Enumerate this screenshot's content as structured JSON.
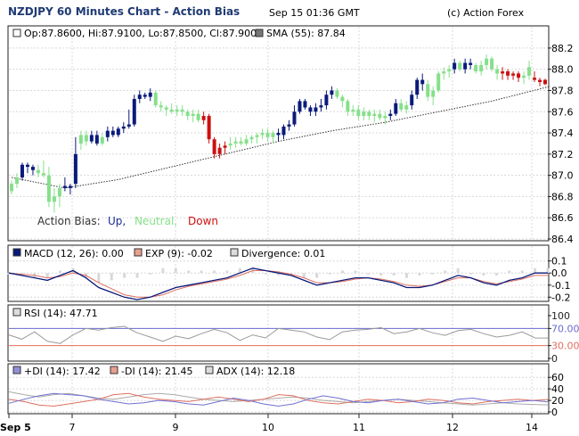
{
  "header": {
    "title": "NZDJPY 60 Minutes Chart - Action Bias",
    "timestamp": "Sep 15 01:36 GMT",
    "copyright": "(c) Action Forex"
  },
  "colors": {
    "up": "#0a1a7a",
    "neutral": "#86e08a",
    "down": "#cc1010",
    "frame": "#222222",
    "grid": "#d8d8d8",
    "sma": "#333333",
    "macd": "#0a1a7a",
    "exp": "#e07060",
    "divergence": "#d8d8d8",
    "rsi": "#999999",
    "rsi_upper": "#6a6ad0",
    "rsi_lower": "#e07060",
    "plus_di": "#7070d0",
    "minus_di": "#e07060",
    "adx": "#aaaaaa"
  },
  "x_axis": {
    "labels": [
      {
        "text": "Sep 5",
        "bold": true
      },
      {
        "text": "7"
      },
      {
        "text": "9"
      },
      {
        "text": "10"
      },
      {
        "text": "11"
      },
      {
        "text": "12"
      },
      {
        "text": "14"
      }
    ]
  },
  "price_panel": {
    "ohlc_label": "Op:87.8600, Hi:87.9100, Lo:87.8500, Cl:87.9000",
    "sma_label": "SMA (55): 87.84",
    "legend_prefix": "Action Bias:",
    "legend_up": "Up,",
    "legend_neutral": "Neutral,",
    "legend_down": "Down",
    "y_ticks": [
      "88.2",
      "88.0",
      "87.8",
      "87.6",
      "87.4",
      "87.2",
      "87.0",
      "86.8",
      "86.6",
      "86.4"
    ]
  },
  "macd_panel": {
    "macd_label": "MACD (12, 26): 0.00",
    "exp_label": "EXP (9): -0.02",
    "div_label": "Divergence: 0.01",
    "y_ticks": [
      "0.1",
      "0.0",
      "-0.1",
      "-0.2"
    ]
  },
  "rsi_panel": {
    "rsi_label": "RSI (14): 47.71",
    "y_ticks": [
      "100",
      "70.00",
      "30.00",
      "0"
    ]
  },
  "adx_panel": {
    "plus_di_label": "+DI (14): 17.42",
    "minus_di_label": "-DI (14): 21.45",
    "adx_label": "ADX (14): 12.18",
    "y_ticks": [
      "60",
      "40",
      "20",
      "0"
    ]
  },
  "chart_data": {
    "type": "bar",
    "title": "NZDJPY 60 Minutes Chart - Action Bias",
    "x_tick_labels": [
      "Sep 5",
      "7",
      "9",
      "10",
      "11",
      "12",
      "14"
    ],
    "price": {
      "ylim": [
        86.4,
        88.3
      ],
      "bars": [
        [
          86.85,
          86.95,
          86.82,
          86.92,
          "n"
        ],
        [
          86.92,
          87.02,
          86.88,
          86.98,
          "n"
        ],
        [
          86.98,
          87.12,
          86.95,
          87.1,
          "u"
        ],
        [
          87.1,
          87.12,
          87.02,
          87.08,
          "u"
        ],
        [
          87.08,
          87.1,
          87.0,
          87.05,
          "u"
        ],
        [
          87.05,
          87.1,
          86.98,
          87.02,
          "n"
        ],
        [
          87.02,
          87.14,
          86.98,
          87.0,
          "n"
        ],
        [
          87.0,
          87.08,
          86.7,
          86.75,
          "n"
        ],
        [
          86.75,
          86.88,
          86.65,
          86.8,
          "n"
        ],
        [
          86.8,
          86.92,
          86.7,
          86.88,
          "n"
        ],
        [
          86.88,
          86.98,
          86.85,
          86.9,
          "u"
        ],
        [
          86.9,
          86.92,
          86.82,
          86.88,
          "u"
        ],
        [
          86.92,
          87.36,
          86.88,
          87.2,
          "u"
        ],
        [
          87.3,
          87.42,
          87.24,
          87.38,
          "n"
        ],
        [
          87.38,
          87.42,
          87.28,
          87.32,
          "n"
        ],
        [
          87.32,
          87.42,
          87.3,
          87.38,
          "u"
        ],
        [
          87.38,
          87.42,
          87.28,
          87.3,
          "u"
        ],
        [
          87.3,
          87.4,
          87.28,
          87.36,
          "n"
        ],
        [
          87.36,
          87.46,
          87.32,
          87.42,
          "u"
        ],
        [
          87.42,
          87.46,
          87.36,
          87.38,
          "u"
        ],
        [
          87.38,
          87.46,
          87.36,
          87.44,
          "u"
        ],
        [
          87.44,
          87.5,
          87.4,
          87.46,
          "u"
        ],
        [
          87.46,
          87.62,
          87.44,
          87.48,
          "u"
        ],
        [
          87.48,
          87.76,
          87.46,
          87.72,
          "u"
        ],
        [
          87.72,
          87.8,
          87.68,
          87.76,
          "u"
        ],
        [
          87.76,
          87.78,
          87.72,
          87.74,
          "u"
        ],
        [
          87.74,
          87.82,
          87.7,
          87.78,
          "u"
        ],
        [
          87.78,
          87.8,
          87.64,
          87.66,
          "n"
        ],
        [
          87.66,
          87.7,
          87.6,
          87.64,
          "n"
        ],
        [
          87.64,
          87.66,
          87.56,
          87.62,
          "n"
        ],
        [
          87.62,
          87.68,
          87.58,
          87.6,
          "n"
        ],
        [
          87.6,
          87.66,
          87.56,
          87.62,
          "n"
        ],
        [
          87.62,
          87.66,
          87.56,
          87.6,
          "n"
        ],
        [
          87.6,
          87.62,
          87.52,
          87.56,
          "n"
        ],
        [
          87.56,
          87.62,
          87.5,
          87.58,
          "n"
        ],
        [
          87.58,
          87.62,
          87.5,
          87.52,
          "n"
        ],
        [
          87.52,
          87.6,
          87.48,
          87.56,
          "d"
        ],
        [
          87.56,
          87.58,
          87.3,
          87.34,
          "d"
        ],
        [
          87.34,
          87.36,
          87.16,
          87.2,
          "d"
        ],
        [
          87.2,
          87.3,
          87.16,
          87.26,
          "d"
        ],
        [
          87.26,
          87.32,
          87.2,
          87.28,
          "d"
        ],
        [
          87.28,
          87.36,
          87.24,
          87.3,
          "n"
        ],
        [
          87.3,
          87.36,
          87.26,
          87.32,
          "n"
        ],
        [
          87.32,
          87.36,
          87.28,
          87.3,
          "n"
        ],
        [
          87.3,
          87.38,
          87.28,
          87.34,
          "n"
        ],
        [
          87.34,
          87.38,
          87.3,
          87.36,
          "n"
        ],
        [
          87.36,
          87.4,
          87.3,
          87.38,
          "n"
        ],
        [
          87.38,
          87.44,
          87.34,
          87.4,
          "n"
        ],
        [
          87.4,
          87.44,
          87.32,
          87.36,
          "n"
        ],
        [
          87.36,
          87.42,
          87.3,
          87.4,
          "n"
        ],
        [
          87.4,
          87.44,
          87.32,
          87.38,
          "u"
        ],
        [
          87.38,
          87.48,
          87.34,
          87.46,
          "u"
        ],
        [
          87.46,
          87.52,
          87.42,
          87.48,
          "u"
        ],
        [
          87.48,
          87.66,
          87.46,
          87.6,
          "u"
        ],
        [
          87.6,
          87.72,
          87.58,
          87.7,
          "u"
        ],
        [
          87.7,
          87.72,
          87.62,
          87.64,
          "u"
        ],
        [
          87.64,
          87.66,
          87.56,
          87.6,
          "u"
        ],
        [
          87.6,
          87.68,
          87.56,
          87.64,
          "u"
        ],
        [
          87.64,
          87.72,
          87.6,
          87.66,
          "u"
        ],
        [
          87.66,
          87.8,
          87.62,
          87.76,
          "u"
        ],
        [
          87.76,
          87.84,
          87.72,
          87.8,
          "u"
        ],
        [
          87.8,
          87.82,
          87.72,
          87.74,
          "n"
        ],
        [
          87.74,
          87.76,
          87.64,
          87.7,
          "n"
        ],
        [
          87.7,
          87.72,
          87.56,
          87.6,
          "n"
        ],
        [
          87.6,
          87.66,
          87.56,
          87.62,
          "n"
        ],
        [
          87.62,
          87.66,
          87.52,
          87.56,
          "n"
        ],
        [
          87.56,
          87.64,
          87.52,
          87.6,
          "n"
        ],
        [
          87.6,
          87.62,
          87.52,
          87.56,
          "n"
        ],
        [
          87.56,
          87.62,
          87.5,
          87.58,
          "n"
        ],
        [
          87.58,
          87.62,
          87.52,
          87.54,
          "n"
        ],
        [
          87.54,
          87.6,
          87.48,
          87.56,
          "n"
        ],
        [
          87.56,
          87.62,
          87.52,
          87.58,
          "u"
        ],
        [
          87.58,
          87.72,
          87.56,
          87.68,
          "u"
        ],
        [
          87.68,
          87.72,
          87.6,
          87.62,
          "n"
        ],
        [
          87.62,
          87.7,
          87.58,
          87.66,
          "n"
        ],
        [
          87.66,
          87.8,
          87.62,
          87.76,
          "u"
        ],
        [
          87.76,
          87.92,
          87.72,
          87.9,
          "u"
        ],
        [
          87.9,
          87.96,
          87.8,
          87.86,
          "u"
        ],
        [
          87.86,
          87.9,
          87.7,
          87.74,
          "n"
        ],
        [
          87.74,
          87.84,
          87.66,
          87.8,
          "n"
        ],
        [
          87.8,
          87.98,
          87.78,
          87.96,
          "n"
        ],
        [
          87.96,
          88.02,
          87.9,
          87.98,
          "n"
        ],
        [
          87.98,
          88.04,
          87.92,
          88.0,
          "n"
        ],
        [
          88.0,
          88.1,
          87.96,
          88.06,
          "u"
        ],
        [
          88.06,
          88.08,
          87.98,
          88.0,
          "n"
        ],
        [
          88.0,
          88.1,
          87.96,
          88.06,
          "u"
        ],
        [
          88.06,
          88.1,
          88.0,
          88.04,
          "u"
        ],
        [
          88.04,
          88.06,
          87.96,
          87.98,
          "n"
        ],
        [
          87.98,
          88.08,
          87.94,
          88.04,
          "n"
        ],
        [
          88.04,
          88.14,
          88.0,
          88.1,
          "n"
        ],
        [
          88.1,
          88.12,
          87.98,
          88.0,
          "n"
        ],
        [
          88.0,
          88.04,
          87.9,
          87.96,
          "n"
        ],
        [
          87.96,
          88.02,
          87.9,
          87.98,
          "d"
        ],
        [
          87.98,
          88.0,
          87.9,
          87.94,
          "d"
        ],
        [
          87.94,
          87.98,
          87.9,
          87.96,
          "d"
        ],
        [
          87.96,
          87.98,
          87.88,
          87.92,
          "d"
        ],
        [
          87.92,
          87.98,
          87.86,
          87.94,
          "n"
        ],
        [
          87.94,
          88.08,
          87.9,
          88.02,
          "n"
        ],
        [
          87.92,
          87.98,
          87.88,
          87.9,
          "d"
        ],
        [
          87.9,
          87.92,
          87.84,
          87.88,
          "d"
        ],
        [
          87.86,
          87.91,
          87.85,
          87.9,
          "d"
        ]
      ],
      "sma": [
        [
          0,
          86.98
        ],
        [
          10,
          86.88
        ],
        [
          20,
          86.96
        ],
        [
          30,
          87.08
        ],
        [
          40,
          87.2
        ],
        [
          50,
          87.32
        ],
        [
          60,
          87.42
        ],
        [
          70,
          87.5
        ],
        [
          80,
          87.6
        ],
        [
          90,
          87.7
        ],
        [
          101,
          87.84
        ]
      ]
    },
    "macd": {
      "ylim": [
        -0.22,
        0.12
      ],
      "macd": [
        0.0,
        -0.02,
        -0.04,
        -0.06,
        -0.02,
        0.02,
        -0.04,
        -0.12,
        -0.16,
        -0.2,
        -0.22,
        -0.2,
        -0.16,
        -0.12,
        -0.1,
        -0.08,
        -0.06,
        -0.04,
        0.0,
        0.04,
        0.02,
        0.0,
        -0.02,
        -0.06,
        -0.1,
        -0.08,
        -0.06,
        -0.04,
        -0.04,
        -0.06,
        -0.08,
        -0.12,
        -0.12,
        -0.1,
        -0.06,
        -0.02,
        -0.04,
        -0.08,
        -0.1,
        -0.06,
        -0.04,
        0.0,
        0.0
      ],
      "exp": [
        0.0,
        -0.01,
        -0.02,
        -0.04,
        -0.03,
        0.0,
        -0.02,
        -0.08,
        -0.13,
        -0.18,
        -0.2,
        -0.2,
        -0.18,
        -0.14,
        -0.11,
        -0.09,
        -0.07,
        -0.05,
        -0.02,
        0.02,
        0.02,
        0.01,
        -0.01,
        -0.04,
        -0.08,
        -0.08,
        -0.07,
        -0.05,
        -0.04,
        -0.05,
        -0.07,
        -0.1,
        -0.11,
        -0.1,
        -0.07,
        -0.04,
        -0.04,
        -0.07,
        -0.09,
        -0.07,
        -0.05,
        -0.02,
        -0.02
      ]
    },
    "rsi": {
      "ylim": [
        0,
        100
      ],
      "upper": 70,
      "lower": 30,
      "values": [
        55,
        45,
        62,
        40,
        35,
        55,
        70,
        66,
        72,
        75,
        60,
        50,
        40,
        52,
        46,
        58,
        68,
        60,
        42,
        55,
        48,
        70,
        66,
        62,
        50,
        44,
        62,
        66,
        68,
        72,
        58,
        62,
        70,
        60,
        54,
        65,
        68,
        58,
        50,
        54,
        62,
        48,
        47.71
      ]
    },
    "adx": {
      "ylim": [
        0,
        65
      ],
      "plus_di": [
        15,
        22,
        28,
        32,
        30,
        28,
        22,
        18,
        14,
        16,
        20,
        18,
        14,
        12,
        18,
        24,
        20,
        14,
        10,
        14,
        22,
        28,
        24,
        18,
        16,
        20,
        22,
        18,
        14,
        16,
        22,
        24,
        20,
        16,
        18,
        20,
        17.42
      ],
      "minus_di": [
        22,
        18,
        12,
        10,
        14,
        18,
        22,
        30,
        32,
        26,
        22,
        20,
        18,
        22,
        26,
        22,
        18,
        22,
        30,
        28,
        20,
        16,
        14,
        18,
        22,
        20,
        16,
        18,
        22,
        20,
        16,
        14,
        18,
        20,
        22,
        20,
        21.45
      ],
      "adx": [
        35,
        30,
        26,
        30,
        32,
        28,
        24,
        22,
        26,
        30,
        32,
        30,
        26,
        22,
        20,
        18,
        20,
        22,
        24,
        26,
        24,
        20,
        18,
        16,
        18,
        20,
        22,
        20,
        18,
        16,
        14,
        12,
        14,
        16,
        14,
        13,
        12.18
      ]
    }
  }
}
